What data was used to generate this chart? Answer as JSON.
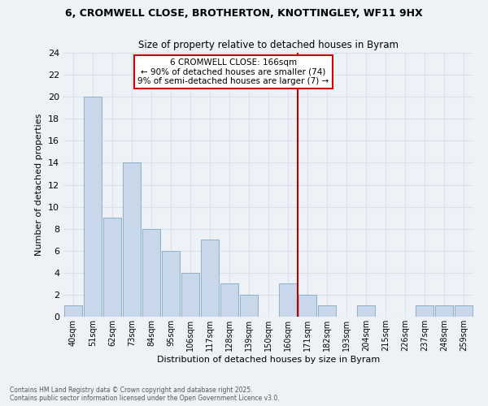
{
  "title_line1": "6, CROMWELL CLOSE, BROTHERTON, KNOTTINGLEY, WF11 9HX",
  "title_line2": "Size of property relative to detached houses in Byram",
  "xlabel": "Distribution of detached houses by size in Byram",
  "ylabel": "Number of detached properties",
  "bin_labels": [
    "40sqm",
    "51sqm",
    "62sqm",
    "73sqm",
    "84sqm",
    "95sqm",
    "106sqm",
    "117sqm",
    "128sqm",
    "139sqm",
    "150sqm",
    "160sqm",
    "171sqm",
    "182sqm",
    "193sqm",
    "204sqm",
    "215sqm",
    "226sqm",
    "237sqm",
    "248sqm",
    "259sqm"
  ],
  "bar_heights": [
    1,
    20,
    9,
    14,
    8,
    6,
    4,
    7,
    3,
    2,
    0,
    3,
    2,
    1,
    0,
    1,
    0,
    0,
    1,
    1,
    1
  ],
  "bar_color": "#c8d8ea",
  "bar_edge_color": "#8ab0cc",
  "vline_x": 11.5,
  "vline_color": "#bb0000",
  "annotation_title": "6 CROMWELL CLOSE: 166sqm",
  "annotation_line2": "← 90% of detached houses are smaller (74)",
  "annotation_line3": "9% of semi-detached houses are larger (7) →",
  "annotation_box_color": "#ffffff",
  "annotation_border_color": "#cc0000",
  "ylim": [
    0,
    24
  ],
  "yticks": [
    0,
    2,
    4,
    6,
    8,
    10,
    12,
    14,
    16,
    18,
    20,
    22,
    24
  ],
  "footer_line1": "Contains HM Land Registry data © Crown copyright and database right 2025.",
  "footer_line2": "Contains public sector information licensed under the Open Government Licence v3.0.",
  "bg_color": "#eef2f7",
  "grid_color": "#d8e0ea"
}
